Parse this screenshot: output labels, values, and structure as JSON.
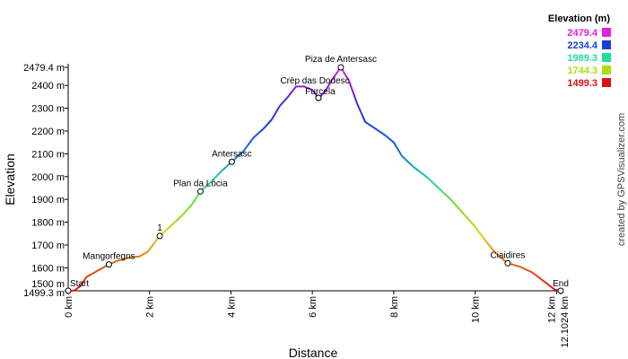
{
  "chart_data": {
    "type": "line",
    "xlabel": "Distance",
    "ylabel": "Elevation",
    "xlim": [
      0,
      12.1024
    ],
    "ylim": [
      1499.3,
      2479.4
    ],
    "x_unit": "km",
    "y_unit": "m",
    "x_ticks": [
      {
        "value": 0,
        "label": "0 km"
      },
      {
        "value": 2,
        "label": "2 km"
      },
      {
        "value": 4,
        "label": "4 km"
      },
      {
        "value": 6,
        "label": "6 km"
      },
      {
        "value": 8,
        "label": "8 km"
      },
      {
        "value": 10,
        "label": "10 km"
      },
      {
        "value": 12,
        "label": "12 km"
      },
      {
        "value": 12.1024,
        "label": "12.1024 km"
      }
    ],
    "y_ticks": [
      {
        "value": 1499.3,
        "label": "1499.3 m"
      },
      {
        "value": 1500,
        "label": "1500 m"
      },
      {
        "value": 1600,
        "label": "1600 m"
      },
      {
        "value": 1700,
        "label": "1700 m"
      },
      {
        "value": 1800,
        "label": "1800 m"
      },
      {
        "value": 1900,
        "label": "1900 m"
      },
      {
        "value": 2000,
        "label": "2000 m"
      },
      {
        "value": 2100,
        "label": "2100 m"
      },
      {
        "value": 2200,
        "label": "2200 m"
      },
      {
        "value": 2300,
        "label": "2300 m"
      },
      {
        "value": 2400,
        "label": "2400 m"
      },
      {
        "value": 2479.4,
        "label": "2479.4 m"
      }
    ],
    "points": [
      [
        0.0,
        1499.3
      ],
      [
        0.15,
        1500
      ],
      [
        0.3,
        1520
      ],
      [
        0.45,
        1560
      ],
      [
        0.65,
        1580
      ],
      [
        0.85,
        1600
      ],
      [
        1.0,
        1615
      ],
      [
        1.2,
        1630
      ],
      [
        1.5,
        1645
      ],
      [
        1.75,
        1650
      ],
      [
        1.95,
        1670
      ],
      [
        2.1,
        1705
      ],
      [
        2.25,
        1740
      ],
      [
        2.5,
        1780
      ],
      [
        2.8,
        1830
      ],
      [
        3.05,
        1880
      ],
      [
        3.25,
        1935
      ],
      [
        3.5,
        1975
      ],
      [
        3.8,
        2030
      ],
      [
        4.02,
        2065
      ],
      [
        4.3,
        2110
      ],
      [
        4.55,
        2170
      ],
      [
        4.8,
        2210
      ],
      [
        5.0,
        2250
      ],
      [
        5.2,
        2310
      ],
      [
        5.4,
        2350
      ],
      [
        5.6,
        2395
      ],
      [
        5.8,
        2395
      ],
      [
        6.0,
        2380
      ],
      [
        6.15,
        2345
      ],
      [
        6.3,
        2370
      ],
      [
        6.5,
        2430
      ],
      [
        6.7,
        2479.4
      ],
      [
        6.9,
        2420
      ],
      [
        7.1,
        2320
      ],
      [
        7.3,
        2240
      ],
      [
        7.55,
        2210
      ],
      [
        7.8,
        2180
      ],
      [
        8.0,
        2150
      ],
      [
        8.2,
        2090
      ],
      [
        8.5,
        2040
      ],
      [
        8.8,
        2000
      ],
      [
        9.1,
        1950
      ],
      [
        9.4,
        1900
      ],
      [
        9.7,
        1840
      ],
      [
        10.0,
        1780
      ],
      [
        10.25,
        1720
      ],
      [
        10.5,
        1665
      ],
      [
        10.8,
        1620
      ],
      [
        11.1,
        1605
      ],
      [
        11.4,
        1580
      ],
      [
        11.7,
        1540
      ],
      [
        11.95,
        1505
      ],
      [
        12.1024,
        1499.3
      ]
    ],
    "waypoints": [
      {
        "label": "Start",
        "x": 0.0,
        "y": 1499.3,
        "anchor": "right"
      },
      {
        "label": "Mangorfegns",
        "x": 1.0,
        "y": 1615,
        "anchor": "above"
      },
      {
        "label": "1",
        "x": 2.25,
        "y": 1740,
        "anchor": "above"
      },
      {
        "label": "Plan da Lòcia",
        "x": 3.25,
        "y": 1935,
        "anchor": "above"
      },
      {
        "label": "Antersasc",
        "x": 4.02,
        "y": 2065,
        "anchor": "above"
      },
      {
        "label": "Crëp das Dodesc",
        "x": 6.15,
        "y": 2345,
        "anchor": "above-far-left"
      },
      {
        "label": "Furcela",
        "x": 6.15,
        "y": 2345,
        "anchor": "above"
      },
      {
        "label": "Piza de Antersasc",
        "x": 6.7,
        "y": 2479.4,
        "anchor": "above"
      },
      {
        "label": "Ciaidires",
        "x": 10.8,
        "y": 1620,
        "anchor": "above"
      },
      {
        "label": "End",
        "x": 12.1024,
        "y": 1499.3,
        "anchor": "above"
      }
    ],
    "legend": {
      "title": "Elevation (m)",
      "placement": "top-right",
      "entries": [
        {
          "label": "2479.4",
          "color": "#e020e0"
        },
        {
          "label": "2234.4",
          "color": "#1a3fd6"
        },
        {
          "label": "1989.3",
          "color": "#22dd99"
        },
        {
          "label": "1744.3",
          "color": "#a8e010"
        },
        {
          "label": "1499.3",
          "color": "#e01010"
        }
      ]
    },
    "color_gradient": [
      "#e01010",
      "#e06a10",
      "#e0d010",
      "#7ae020",
      "#20d0a0",
      "#1a6ae0",
      "#1a3fd6",
      "#6a20d0",
      "#e020e0"
    ],
    "grid": false
  },
  "credit": "created by GPSVisualizer.com"
}
